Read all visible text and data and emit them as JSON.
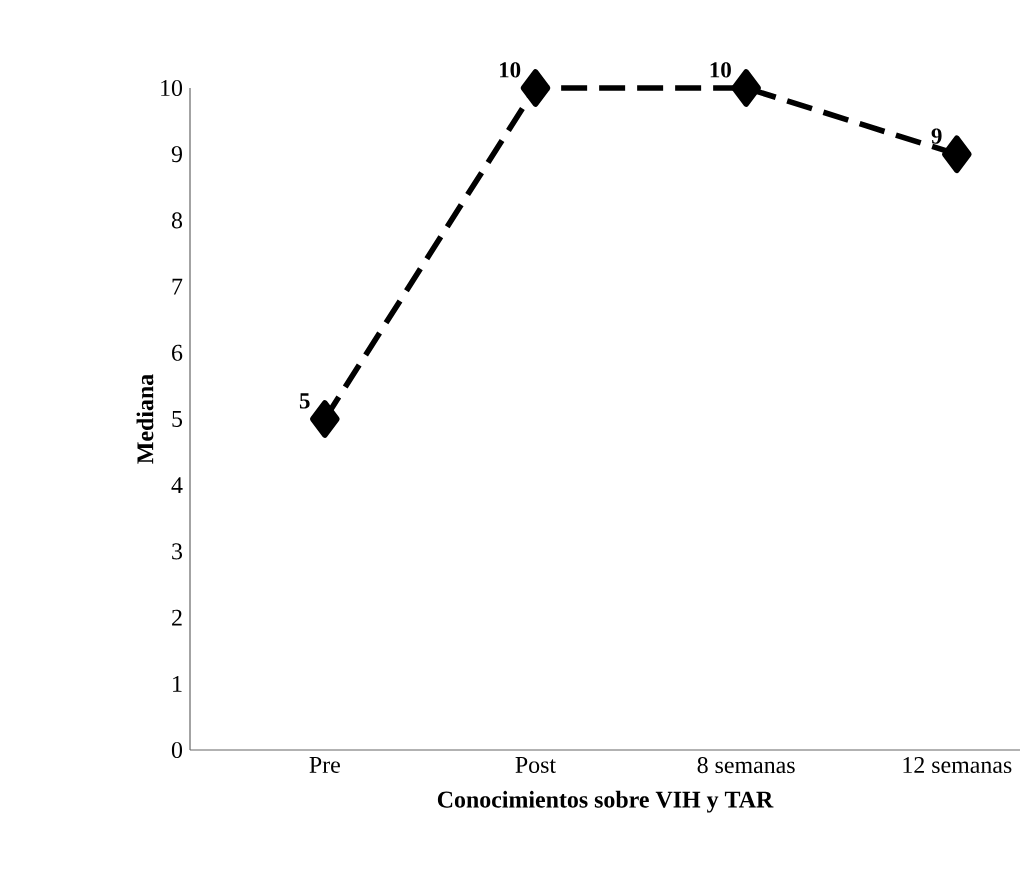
{
  "chart_data": {
    "type": "line",
    "xlabel": "Conocimientos sobre VIH y TAR",
    "ylabel": "Mediana",
    "categories": [
      "Pre",
      "Post",
      "8 semanas",
      "12 semanas"
    ],
    "series": [
      {
        "color": "#000000",
        "values": [
          5,
          10,
          10,
          9
        ]
      }
    ],
    "ylim": [
      0,
      10
    ],
    "yticks": [
      0,
      1,
      2,
      3,
      4,
      5,
      6,
      7,
      8,
      9,
      10
    ],
    "data_labels": true,
    "marker": "diamond",
    "line_style": "dashed",
    "grid": false
  }
}
